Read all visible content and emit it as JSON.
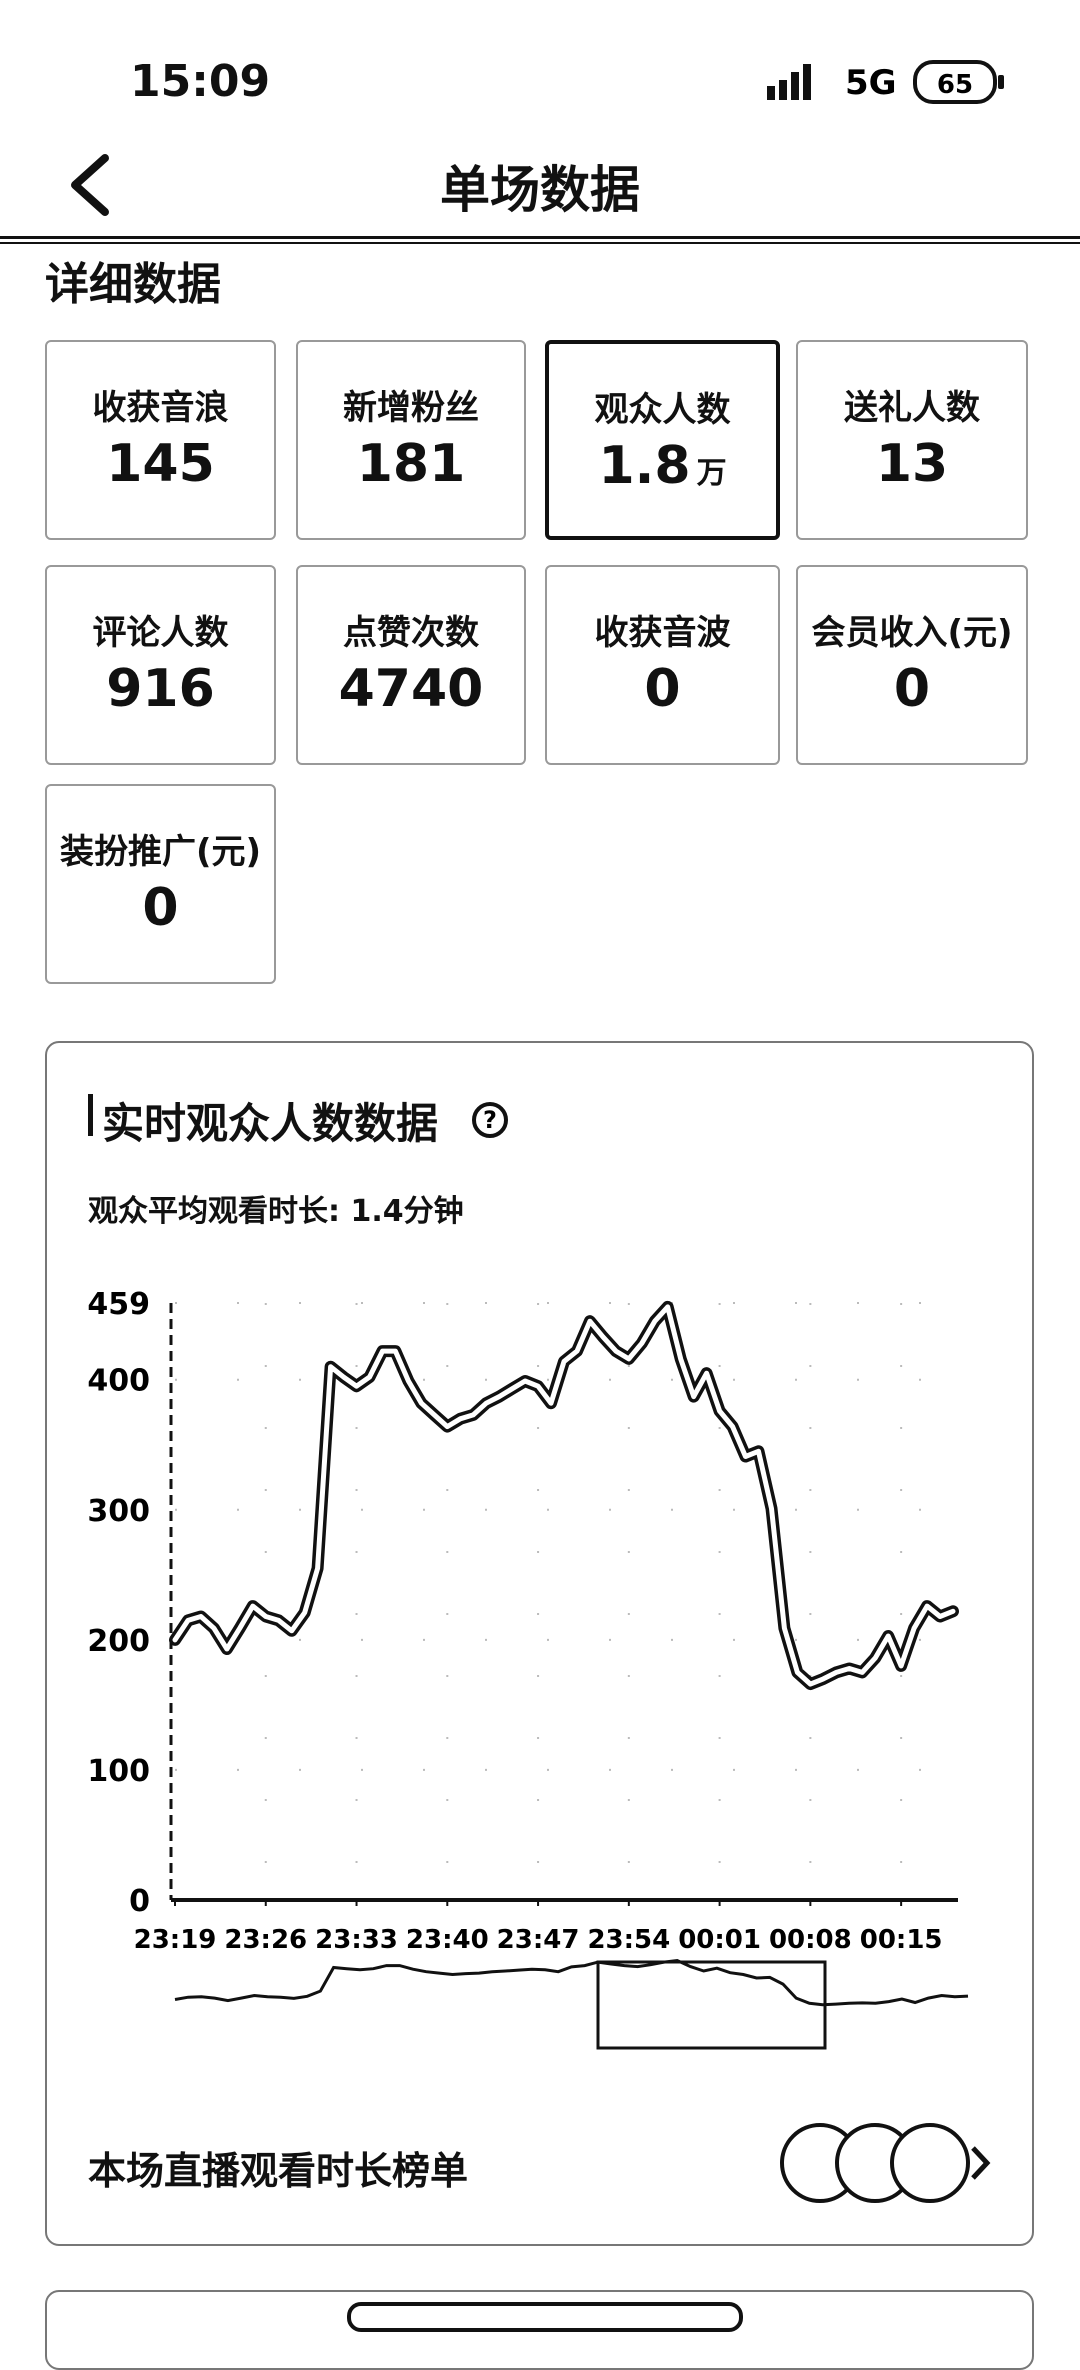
{
  "status": {
    "time": "15:09",
    "network": "5G",
    "battery": "65"
  },
  "header": {
    "title": "单场数据"
  },
  "section_title": "详细数据",
  "stats": [
    {
      "label": "收获音浪",
      "value": "145"
    },
    {
      "label": "新增粉丝",
      "value": "181"
    },
    {
      "label": "观众人数",
      "value": "1.8",
      "unit": "万"
    },
    {
      "label": "送礼人数",
      "value": "13"
    },
    {
      "label": "评论人数",
      "value": "916"
    },
    {
      "label": "点赞次数",
      "value": "4740"
    },
    {
      "label": "收获音波",
      "value": "0"
    },
    {
      "label": "会员收入(元)",
      "value": "0"
    },
    {
      "label": "装扮推广(元)",
      "value": "0"
    }
  ],
  "selected_stat": 2,
  "chart_data": {
    "type": "line",
    "title": "实时观众人数数据",
    "subtitle": "观众平均观看时长: 1.4分钟",
    "x": [
      0,
      1,
      2,
      3,
      4,
      5,
      6,
      7,
      8,
      9,
      10,
      11,
      12,
      13,
      14,
      15,
      16,
      17,
      18,
      19,
      20,
      21,
      22,
      23,
      24,
      25,
      26,
      27,
      28,
      29,
      30,
      31,
      32,
      33,
      34,
      35,
      36,
      37,
      38,
      39,
      40,
      41,
      42,
      43,
      44,
      45,
      46,
      47,
      48,
      49,
      50,
      51,
      52,
      53,
      54,
      55,
      56,
      57,
      58,
      59,
      60
    ],
    "values": [
      200,
      215,
      218,
      209,
      193,
      209,
      226,
      218,
      215,
      207,
      221,
      255,
      410,
      402,
      395,
      402,
      422,
      422,
      399,
      382,
      373,
      364,
      370,
      373,
      382,
      387,
      393,
      399,
      395,
      382,
      414,
      422,
      445,
      433,
      422,
      416,
      428,
      445,
      456,
      416,
      387,
      405,
      376,
      364,
      341,
      345,
      301,
      209,
      175,
      166,
      170,
      175,
      178,
      175,
      186,
      203,
      180,
      209,
      226,
      218,
      222
    ],
    "color": "#111111",
    "xlim": [
      0,
      60
    ],
    "xticks": [
      {
        "value": 0,
        "label": "23:19"
      },
      {
        "value": 7,
        "label": "23:26"
      },
      {
        "value": 14,
        "label": "23:33"
      },
      {
        "value": 21,
        "label": "23:40"
      },
      {
        "value": 28,
        "label": "23:47"
      },
      {
        "value": 35,
        "label": "23:54"
      },
      {
        "value": 42,
        "label": "00:01"
      },
      {
        "value": 49,
        "label": "00:08"
      },
      {
        "value": 56,
        "label": "00:15"
      }
    ],
    "ylim": [
      0,
      459
    ],
    "yticks": [
      0,
      100,
      200,
      300,
      400,
      459
    ],
    "grid": true
  },
  "footer": {
    "label": "本场直播观看时长榜单"
  }
}
